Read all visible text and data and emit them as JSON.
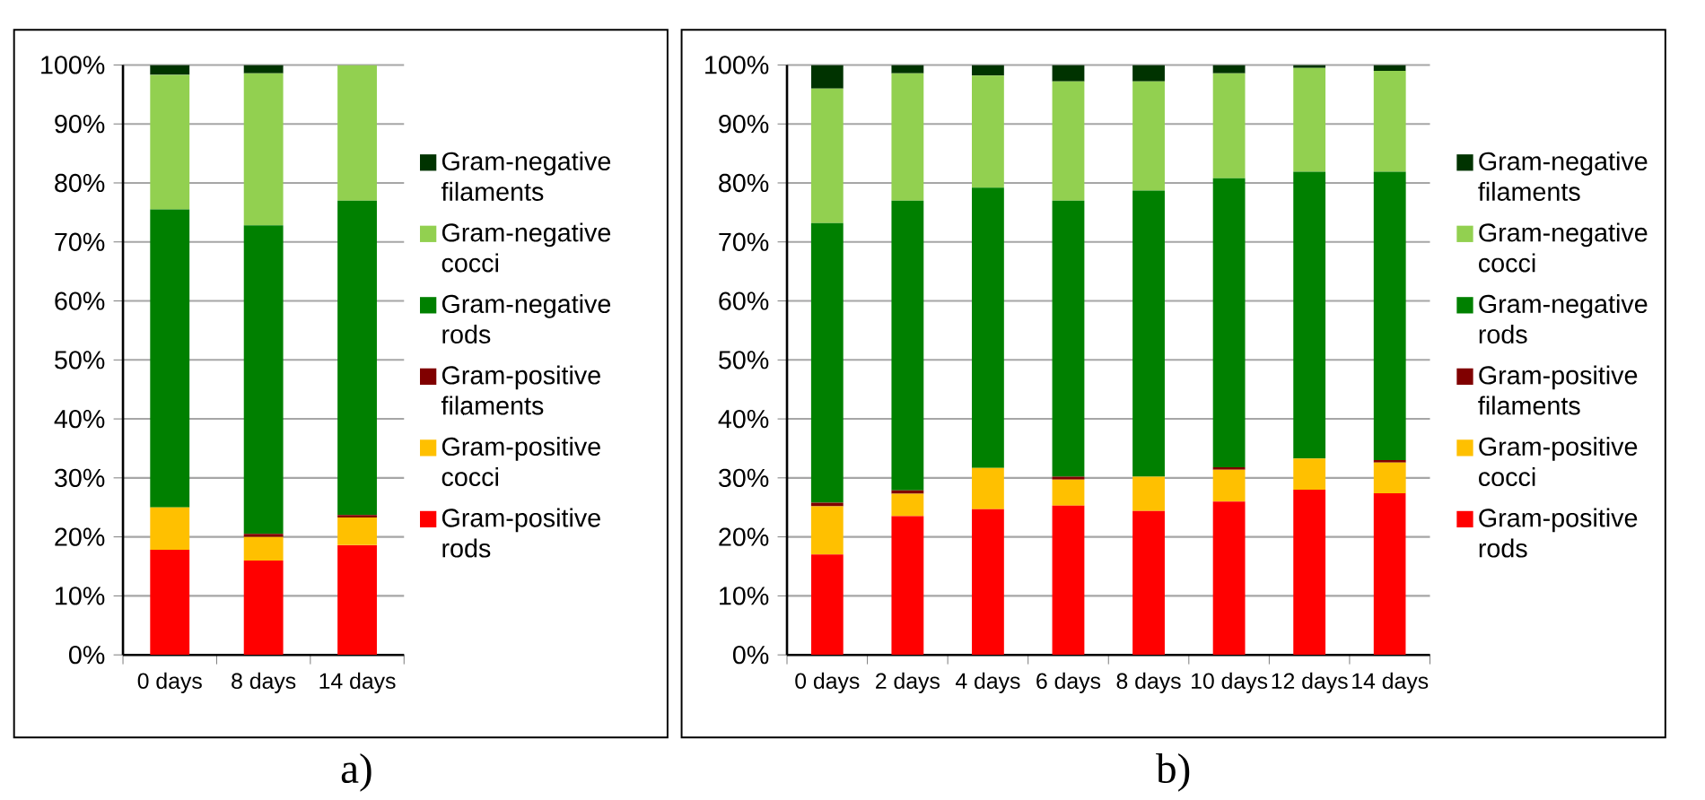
{
  "chart_data": [
    {
      "type": "bar",
      "stacked": true,
      "grid": "y",
      "legend": "right",
      "annotations": [
        "a)"
      ],
      "categories": [
        "0 days",
        "8 days",
        "14 days"
      ],
      "ylim": [
        0,
        100
      ],
      "yticks": [
        {
          "value": 0,
          "label": "0%"
        },
        {
          "value": 10,
          "label": "10%"
        },
        {
          "value": 20,
          "label": "20%"
        },
        {
          "value": 30,
          "label": "30%"
        },
        {
          "value": 40,
          "label": "40%"
        },
        {
          "value": 50,
          "label": "50%"
        },
        {
          "value": 60,
          "label": "60%"
        },
        {
          "value": 70,
          "label": "70%"
        },
        {
          "value": 80,
          "label": "80%"
        },
        {
          "value": 90,
          "label": "90%"
        },
        {
          "value": 100,
          "label": "100%"
        }
      ],
      "series": [
        {
          "name": "Gram-positive rods",
          "color": "#ff0000",
          "values": [
            17.8,
            16,
            18.6
          ]
        },
        {
          "name": "Gram-positive cocci",
          "color": "#ffc000",
          "values": [
            7.2,
            4,
            4.7
          ]
        },
        {
          "name": "Gram-positive filaments",
          "color": "#800000",
          "values": [
            0,
            0.5,
            0.4
          ]
        },
        {
          "name": "Gram-negative rods",
          "color": "#008000",
          "values": [
            50.5,
            52.3,
            53.3
          ]
        },
        {
          "name": "Gram-negative cocci",
          "color": "#92d050",
          "values": [
            22.8,
            25.8,
            23
          ]
        },
        {
          "name": "Gram-negative filaments",
          "color": "#003300",
          "values": [
            1.7,
            1.4,
            0
          ]
        }
      ]
    },
    {
      "type": "bar",
      "stacked": true,
      "grid": "y",
      "legend": "right",
      "annotations": [
        "b)"
      ],
      "categories": [
        "0 days",
        "2 days",
        "4 days",
        "6 days",
        "8 days",
        "10 days",
        "12 days",
        "14 days"
      ],
      "ylim": [
        0,
        100
      ],
      "yticks": [
        {
          "value": 0,
          "label": "0%"
        },
        {
          "value": 10,
          "label": "10%"
        },
        {
          "value": 20,
          "label": "20%"
        },
        {
          "value": 30,
          "label": "30%"
        },
        {
          "value": 40,
          "label": "40%"
        },
        {
          "value": 50,
          "label": "50%"
        },
        {
          "value": 60,
          "label": "60%"
        },
        {
          "value": 70,
          "label": "70%"
        },
        {
          "value": 80,
          "label": "80%"
        },
        {
          "value": 90,
          "label": "90%"
        },
        {
          "value": 100,
          "label": "100%"
        }
      ],
      "series": [
        {
          "name": "Gram-positive rods",
          "color": "#ff0000",
          "values": [
            17,
            23.5,
            24.7,
            25.3,
            24.4,
            26,
            28,
            27.4
          ]
        },
        {
          "name": "Gram-positive cocci",
          "color": "#ffc000",
          "values": [
            8.2,
            3.8,
            7,
            4.4,
            5.8,
            5.4,
            5.3,
            5.2
          ]
        },
        {
          "name": "Gram-positive filaments",
          "color": "#800000",
          "values": [
            0.6,
            0.6,
            0,
            0.5,
            0,
            0.4,
            0,
            0.4
          ]
        },
        {
          "name": "Gram-negative rods",
          "color": "#008000",
          "values": [
            47.4,
            49.1,
            47.5,
            46.8,
            48.5,
            49,
            48.6,
            48.9
          ]
        },
        {
          "name": "Gram-negative cocci",
          "color": "#92d050",
          "values": [
            22.8,
            21.6,
            19,
            20.2,
            18.5,
            17.8,
            17.6,
            17.1
          ]
        },
        {
          "name": "Gram-negative filaments",
          "color": "#003300",
          "values": [
            4,
            1.4,
            1.8,
            2.8,
            2.8,
            1.4,
            0.5,
            1
          ]
        }
      ]
    }
  ]
}
